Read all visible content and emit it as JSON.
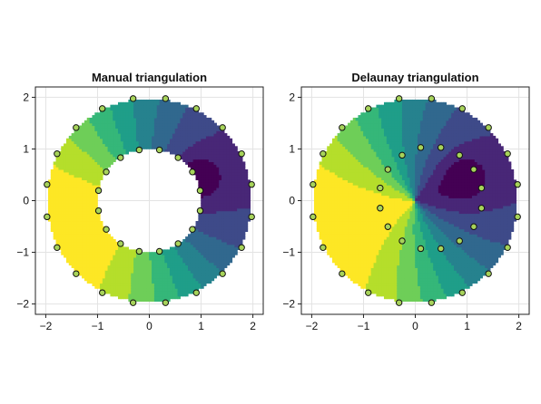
{
  "chart_data": [
    {
      "type": "contour",
      "title": "Manual triangulation",
      "xlabel": "",
      "ylabel": "",
      "xlim": [
        -2.2,
        2.2
      ],
      "ylim": [
        -2.2,
        2.2
      ],
      "xticks": [
        -2,
        -1,
        0,
        1,
        2
      ],
      "yticks": [
        -2,
        -1,
        0,
        1,
        2
      ],
      "xtick_labels": [
        "−2",
        "−1",
        "0",
        "1",
        "2"
      ],
      "ytick_labels": [
        "−2",
        "−1",
        "0",
        "1",
        "2"
      ],
      "grid": true,
      "colormap": "viridis",
      "inner_radius": 1.0,
      "outer_radius": 2.0,
      "points_inner_count": 16,
      "points_outer_count": 20
    },
    {
      "type": "contour",
      "title": "Delaunay triangulation",
      "xlabel": "",
      "ylabel": "",
      "xlim": [
        -2.2,
        2.2
      ],
      "ylim": [
        -2.2,
        2.2
      ],
      "xticks": [
        -2,
        -1,
        0,
        1,
        2
      ],
      "yticks": [
        -2,
        -1,
        0,
        1,
        2
      ],
      "xtick_labels": [
        "−2",
        "−1",
        "0",
        "1",
        "2"
      ],
      "ytick_labels": [
        "−2",
        "−1",
        "0",
        "1",
        "2"
      ],
      "grid": true,
      "colormap": "viridis",
      "inner_radius": 1.0,
      "outer_radius": 2.0,
      "points_inner_count": 16,
      "points_outer_count": 20
    }
  ],
  "colors": {
    "levels": [
      "#440154",
      "#482777",
      "#3e4a89",
      "#31688e",
      "#26828e",
      "#1f9e89",
      "#35b779",
      "#6ece58",
      "#b5de2b",
      "#fde725"
    ],
    "point_fill": "#a7d35a",
    "point_edge": "#111111"
  }
}
